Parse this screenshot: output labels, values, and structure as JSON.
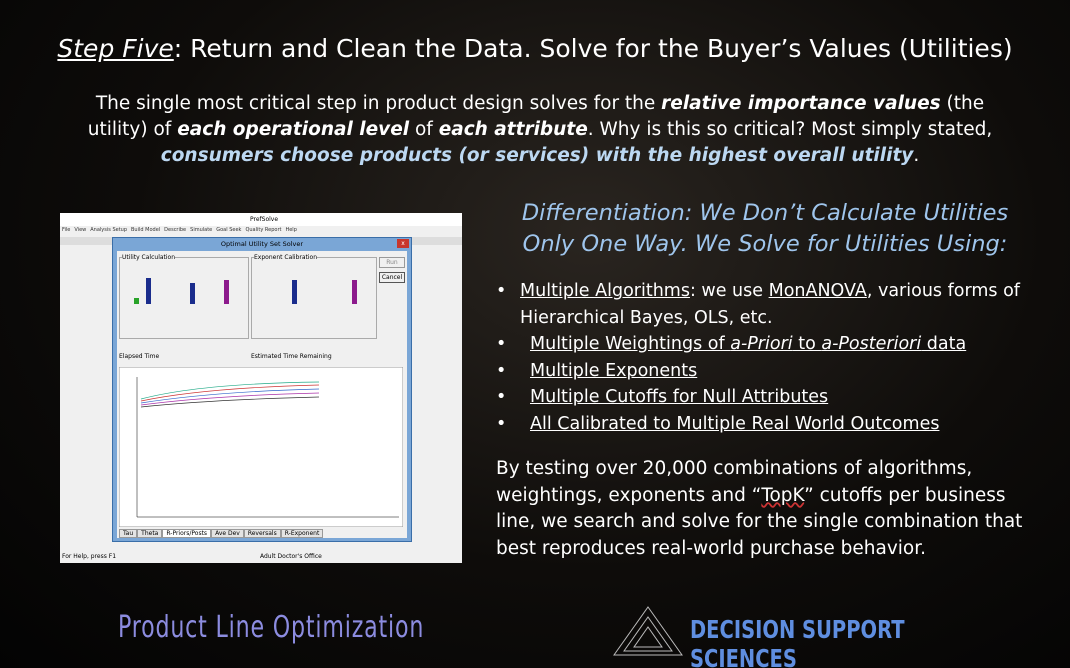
{
  "header": {
    "title_lead": "Step Five",
    "title_rest": ": Return and Clean the Data. Solve for the Buyer’s Values (Utilities)"
  },
  "intro": {
    "segments": [
      "The single most critical step in product design solves for the ",
      "relative importance values",
      " (the utility) of ",
      "each operational level",
      " of ",
      "each attribute",
      ".  Why is this so critical? Most simply stated, ",
      "consumers choose products (or services) with the highest overall utility",
      "."
    ]
  },
  "differentiation": {
    "line1": "Differentiation: We Don’t Calculate Utilities",
    "line2": "Only One Way.  We Solve for Utilities Using:"
  },
  "bullets": [
    [
      "Multiple Algorithms",
      ": we use ",
      "MonANOVA",
      ", various forms of Hierarchical Bayes, OLS, etc."
    ],
    [
      "Multiple Weightings of ",
      "a-Priori",
      " to ",
      "a-Posteriori",
      " data"
    ],
    [
      "Multiple Exponents"
    ],
    [
      "Multiple Cutoffs for Null Attributes"
    ],
    [
      "All Calibrated to Multiple Real World Outcomes"
    ]
  ],
  "closing": {
    "segments": [
      "By testing over 20,000 combinations of algorithms, weightings, exponents and “",
      "TopK",
      "” cutoffs per business line, we search and solve for the single combination that best reproduces real-world purchase behavior."
    ]
  },
  "screenshot": {
    "window_title": "PrefSolve",
    "menu": [
      "File",
      "View",
      "Analysis Setup",
      "Build Model",
      "Describe",
      "Simulate",
      "Goal Seek",
      "Quality Report",
      "Help"
    ],
    "dialog_title": "Optimal Utility Set Solver",
    "panel_left": "Utility Calculation",
    "panel_right": "Exponent Calibration",
    "elapsed": "Elapsed Time",
    "remaining": "Estimated Time Remaining",
    "buttons": [
      "Run",
      "Cancel"
    ],
    "tabs": [
      "Tau",
      "Theta",
      "R-Priors/Posts",
      "Ave Dev",
      "Reversals",
      "R-Exponent"
    ],
    "status": [
      "For Help, press F1",
      "Adult Doctor's Office"
    ]
  },
  "footer": {
    "left": "Product Line Optimization",
    "right": "DECISION SUPPORT SCIENCES"
  }
}
